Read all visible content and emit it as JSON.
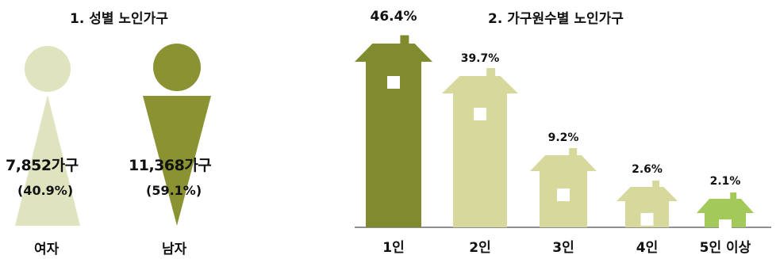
{
  "gender_section": {
    "title": "1. 성별 노인가구",
    "female": {
      "label": "여자",
      "count": "7,852가구",
      "percent": "(40.9%)",
      "color": "#dfe4bf"
    },
    "male": {
      "label": "남자",
      "count": "11,368가구",
      "percent": "(59.1%)",
      "color": "#8a9231"
    }
  },
  "household_section": {
    "title": "2. 가구원수별 노인가구"
  },
  "chart_data": {
    "type": "bar",
    "title": "2. 가구원수별 노인가구",
    "categories": [
      "1인",
      "2인",
      "3인",
      "4인",
      "5인 이상"
    ],
    "values": [
      46.4,
      39.7,
      9.2,
      2.6,
      2.1
    ],
    "value_labels": [
      "46.4%",
      "39.7%",
      "9.2%",
      "2.6%",
      "2.1%"
    ],
    "colors": [
      "#7f8b2e",
      "#d6d99b",
      "#d6d99b",
      "#d6d99b",
      "#a3c95a"
    ],
    "ylim": [
      0,
      50
    ],
    "grid": false,
    "legend": "none"
  }
}
